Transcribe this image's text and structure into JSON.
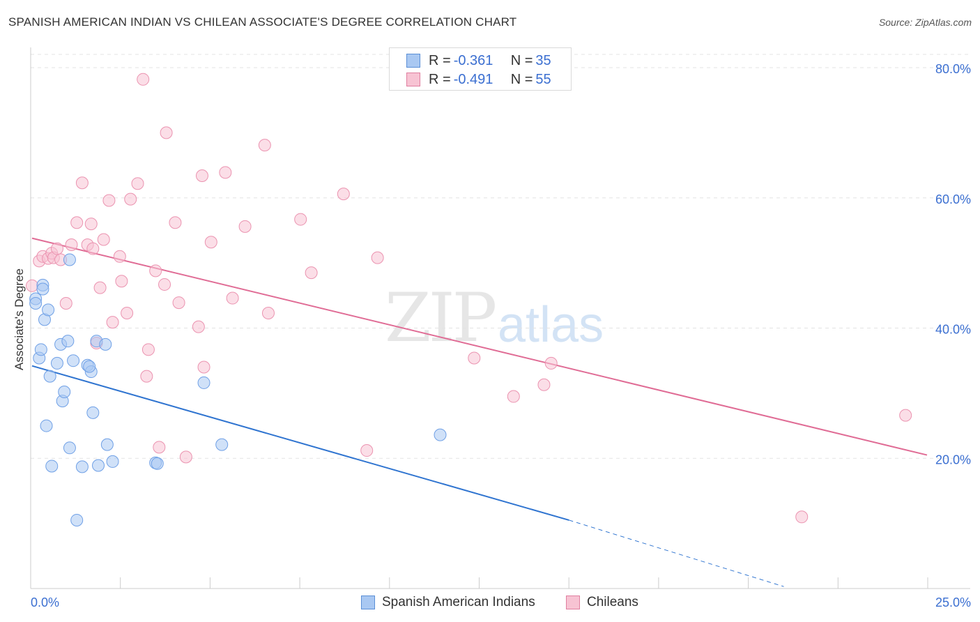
{
  "title": "SPANISH AMERICAN INDIAN VS CHILEAN ASSOCIATE'S DEGREE CORRELATION CHART",
  "source": "Source: ZipAtlas.com",
  "watermark": {
    "zip": "ZIP",
    "atlas": "atlas"
  },
  "legend_top": {
    "rows": [
      {
        "r_label": "R =",
        "r_value": "-0.361",
        "n_label": "N =",
        "n_value": "35",
        "color": "#a9c8f2",
        "border": "#5b8fd6"
      },
      {
        "r_label": "R =",
        "r_value": "-0.491",
        "n_label": "N =",
        "n_value": "55",
        "color": "#f7c3d3",
        "border": "#e07fa0"
      }
    ]
  },
  "legend_bottom": {
    "items": [
      {
        "label": "Spanish American Indians",
        "color": "#a9c8f2",
        "border": "#5b8fd6"
      },
      {
        "label": "Chileans",
        "color": "#f7c3d3",
        "border": "#e07fa0"
      }
    ]
  },
  "chart_data": {
    "type": "scatter",
    "title": "SPANISH AMERICAN INDIAN VS CHILEAN ASSOCIATE'S DEGREE CORRELATION CHART",
    "xlabel": "",
    "ylabel": "Associate's Degree",
    "xlim": [
      0,
      25
    ],
    "ylim": [
      0,
      80
    ],
    "x_tick_labels": [
      "0.0%",
      "25.0%"
    ],
    "y_ticks": [
      20,
      40,
      60,
      80
    ],
    "y_tick_labels": [
      "20.0%",
      "40.0%",
      "60.0%",
      "80.0%"
    ],
    "grid": true,
    "series": [
      {
        "name": "Spanish American Indians",
        "color": "#6fa0e6",
        "line_color": "#2f74d0",
        "trend": {
          "x0": 0,
          "y0": 34.2,
          "x1": 15,
          "y1": 10.5,
          "dash_to_x": 21,
          "dash_to_y": 0.3
        },
        "points": [
          [
            0.1,
            44.5
          ],
          [
            0.1,
            43.8
          ],
          [
            0.2,
            35.4
          ],
          [
            0.25,
            36.7
          ],
          [
            0.3,
            46.6
          ],
          [
            0.35,
            41.3
          ],
          [
            0.45,
            42.8
          ],
          [
            0.5,
            32.6
          ],
          [
            0.4,
            25.0
          ],
          [
            0.55,
            18.8
          ],
          [
            0.7,
            34.6
          ],
          [
            0.8,
            37.5
          ],
          [
            0.85,
            28.8
          ],
          [
            0.9,
            30.2
          ],
          [
            1.0,
            38.0
          ],
          [
            1.05,
            21.6
          ],
          [
            1.15,
            35.0
          ],
          [
            1.25,
            10.5
          ],
          [
            1.4,
            18.7
          ],
          [
            1.55,
            34.3
          ],
          [
            1.65,
            33.3
          ],
          [
            1.7,
            27.0
          ],
          [
            1.8,
            38.0
          ],
          [
            1.85,
            18.9
          ],
          [
            2.05,
            37.5
          ],
          [
            2.1,
            22.1
          ],
          [
            2.25,
            19.5
          ],
          [
            3.45,
            19.3
          ],
          [
            3.5,
            19.2
          ],
          [
            4.8,
            31.6
          ],
          [
            5.3,
            22.1
          ],
          [
            11.4,
            23.6
          ],
          [
            1.05,
            50.5
          ],
          [
            0.3,
            46.0
          ],
          [
            1.6,
            34.1
          ]
        ]
      },
      {
        "name": "Chileans",
        "color": "#f3a8c0",
        "line_color": "#e06c95",
        "trend": {
          "x0": 0,
          "y0": 53.8,
          "x1": 25,
          "y1": 20.5
        },
        "points": [
          [
            0.0,
            46.5
          ],
          [
            0.2,
            50.3
          ],
          [
            0.3,
            51.0
          ],
          [
            0.45,
            50.7
          ],
          [
            0.55,
            51.5
          ],
          [
            0.6,
            50.8
          ],
          [
            0.7,
            52.2
          ],
          [
            0.8,
            50.5
          ],
          [
            0.95,
            43.8
          ],
          [
            1.1,
            52.8
          ],
          [
            1.25,
            56.2
          ],
          [
            1.4,
            62.3
          ],
          [
            1.55,
            52.8
          ],
          [
            1.65,
            56.0
          ],
          [
            1.7,
            52.2
          ],
          [
            1.8,
            37.7
          ],
          [
            1.9,
            46.2
          ],
          [
            2.0,
            53.6
          ],
          [
            2.15,
            59.6
          ],
          [
            2.25,
            40.9
          ],
          [
            2.45,
            51.0
          ],
          [
            2.5,
            47.2
          ],
          [
            2.65,
            42.3
          ],
          [
            2.75,
            59.8
          ],
          [
            2.95,
            62.2
          ],
          [
            3.1,
            78.2
          ],
          [
            3.2,
            32.6
          ],
          [
            3.25,
            36.7
          ],
          [
            3.45,
            48.8
          ],
          [
            3.55,
            21.7
          ],
          [
            3.7,
            46.7
          ],
          [
            3.75,
            70.0
          ],
          [
            4.0,
            56.2
          ],
          [
            4.1,
            43.9
          ],
          [
            4.3,
            20.2
          ],
          [
            4.65,
            40.2
          ],
          [
            4.75,
            63.4
          ],
          [
            4.8,
            34.0
          ],
          [
            5.0,
            53.2
          ],
          [
            5.4,
            63.9
          ],
          [
            5.6,
            44.6
          ],
          [
            5.95,
            55.6
          ],
          [
            6.6,
            42.3
          ],
          [
            6.5,
            68.1
          ],
          [
            7.5,
            56.7
          ],
          [
            7.8,
            48.5
          ],
          [
            8.7,
            60.6
          ],
          [
            9.35,
            21.2
          ],
          [
            9.65,
            50.8
          ],
          [
            12.35,
            35.4
          ],
          [
            13.45,
            29.5
          ],
          [
            14.3,
            31.3
          ],
          [
            14.5,
            34.6
          ],
          [
            21.5,
            11.0
          ],
          [
            24.4,
            26.6
          ]
        ]
      }
    ]
  }
}
